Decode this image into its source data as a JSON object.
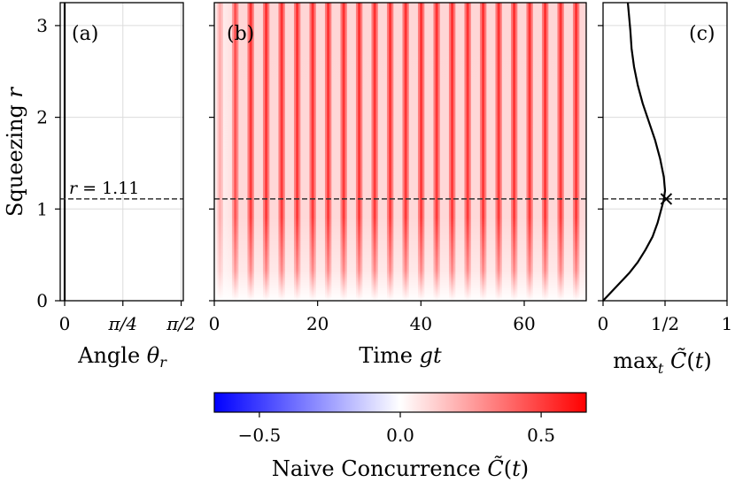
{
  "chart_data": [
    {
      "id": "a",
      "type": "line",
      "panel_label": "(a)",
      "xlabel": "Angle θ_r",
      "xlabel_text": "Angle ",
      "xlabel_sym": "θ",
      "xlabel_sub": "r",
      "ylabel": "Squeezing r",
      "ylabel_text": "Squeezing ",
      "ylabel_sym": "r",
      "xlim": [
        -0.06,
        1.6
      ],
      "ylim": [
        0,
        3.25
      ],
      "xticks": [
        {
          "v": 0,
          "label": "0"
        },
        {
          "v": 0.785,
          "label": "π/4"
        },
        {
          "v": 1.571,
          "label": "π/2"
        }
      ],
      "yticks": [
        {
          "v": 0,
          "label": "0"
        },
        {
          "v": 1,
          "label": "1"
        },
        {
          "v": 2,
          "label": "2"
        },
        {
          "v": 3,
          "label": "3"
        }
      ],
      "series": [
        {
          "name": "optimal angle",
          "x": [
            0,
            0
          ],
          "y": [
            0,
            3.25
          ]
        }
      ],
      "hline": {
        "y": 1.11,
        "label": "r = 1.11"
      },
      "grid": true
    },
    {
      "id": "b",
      "type": "heatmap",
      "panel_label": "(b)",
      "xlabel": "Time gt",
      "xlabel_text": "Time ",
      "xlabel_sym": "gt",
      "xlim": [
        0,
        72
      ],
      "ylim": [
        0,
        3.25
      ],
      "xticks": [
        {
          "v": 0,
          "label": "0"
        },
        {
          "v": 20,
          "label": "20"
        },
        {
          "v": 40,
          "label": "40"
        },
        {
          "v": 60,
          "label": "60"
        }
      ],
      "oscillation_period": 3.0,
      "hline": {
        "y": 1.11
      },
      "colorscale": {
        "min": -0.66,
        "max": 0.66,
        "low": "#0000ff",
        "mid": "#ffffff",
        "high": "#ff0000"
      }
    },
    {
      "id": "c",
      "type": "line",
      "panel_label": "(c)",
      "xlabel": "max_t C̃(t)",
      "xlim": [
        0,
        1
      ],
      "ylim": [
        0,
        3.25
      ],
      "xticks": [
        {
          "v": 0,
          "label": "0"
        },
        {
          "v": 0.5,
          "label": "1/2"
        },
        {
          "v": 1,
          "label": "1"
        }
      ],
      "series": [
        {
          "name": "max concurrence",
          "x": [
            0,
            0.07,
            0.14,
            0.21,
            0.28,
            0.34,
            0.4,
            0.44,
            0.47,
            0.49,
            0.5,
            0.49,
            0.46,
            0.42,
            0.37,
            0.32,
            0.28,
            0.25,
            0.23,
            0.22,
            0.21,
            0.2
          ],
          "y": [
            0,
            0.1,
            0.2,
            0.3,
            0.42,
            0.55,
            0.7,
            0.85,
            1.0,
            1.1,
            1.2,
            1.35,
            1.55,
            1.75,
            1.95,
            2.15,
            2.35,
            2.55,
            2.75,
            2.95,
            3.1,
            3.25
          ]
        }
      ],
      "marker": {
        "x": 0.51,
        "y": 1.11,
        "symbol": "x"
      },
      "hline": {
        "y": 1.11
      },
      "grid": true
    }
  ],
  "colorbar": {
    "label_text": "Naive Concurrence ",
    "ticks": [
      {
        "v": -0.5,
        "label": "−0.5"
      },
      {
        "v": 0,
        "label": "0.0"
      },
      {
        "v": 0.5,
        "label": "0.5"
      }
    ],
    "range": [
      -0.66,
      0.66
    ]
  }
}
